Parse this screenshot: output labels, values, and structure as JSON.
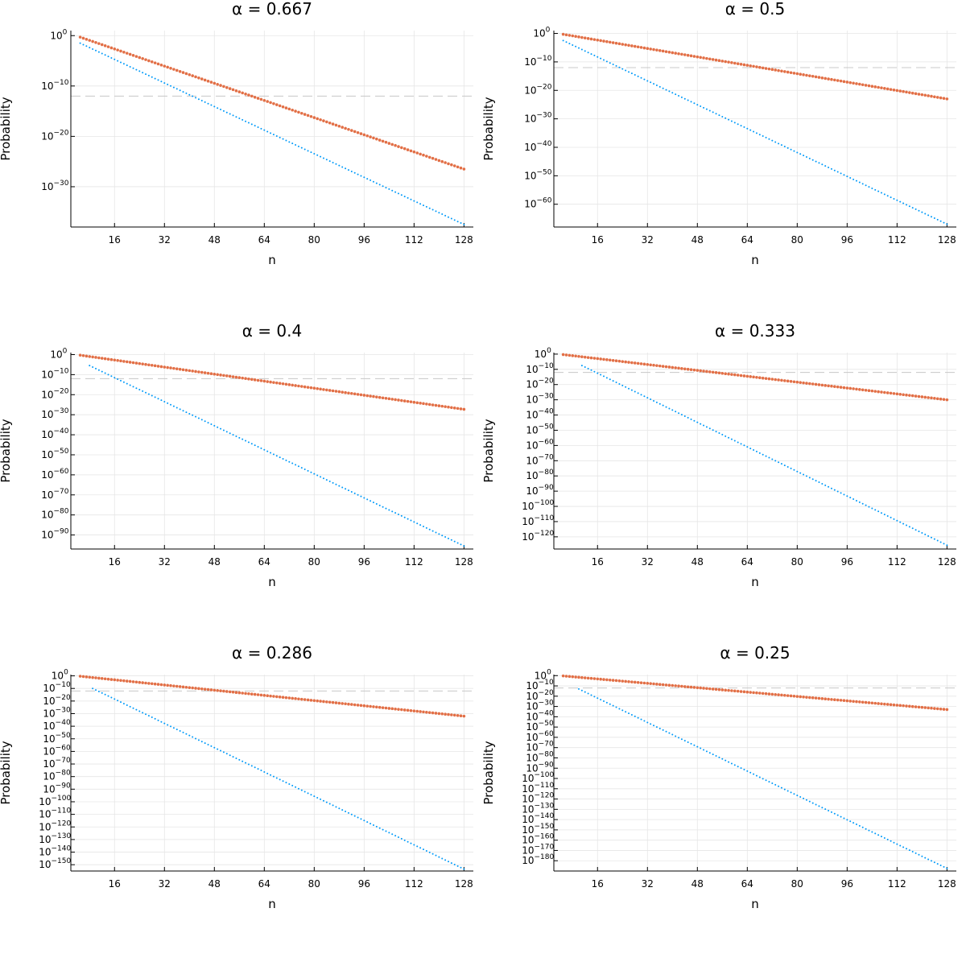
{
  "chart_data": [
    {
      "type": "scatter",
      "title": "α = 0.667",
      "xlabel": "n",
      "ylabel": "Probability",
      "xlim": [
        2,
        131
      ],
      "ylim_log10": [
        -38,
        1
      ],
      "xticks": [
        16,
        32,
        48,
        64,
        80,
        96,
        112,
        128
      ],
      "yticks_exp": [
        0,
        -10,
        -20,
        -30
      ],
      "reference_line_log10": -12,
      "grid": true,
      "series": [
        {
          "name": "orange",
          "color": "#e26f46",
          "style": "markers",
          "x_start": 5,
          "x_end": 128,
          "log10_start": -0.3,
          "log10_end": -26.5
        },
        {
          "name": "blue",
          "color": "#009af9",
          "style": "dotted",
          "x_start": 5,
          "x_end": 128,
          "log10_start": -1.5,
          "log10_end": -37.5
        }
      ]
    },
    {
      "type": "scatter",
      "title": "α = 0.5",
      "xlabel": "n",
      "ylabel": "Probability",
      "xlim": [
        2,
        131
      ],
      "ylim_log10": [
        -68,
        1
      ],
      "xticks": [
        16,
        32,
        48,
        64,
        80,
        96,
        112,
        128
      ],
      "yticks_exp": [
        0,
        -10,
        -20,
        -30,
        -40,
        -50,
        -60
      ],
      "reference_line_log10": -12,
      "grid": true,
      "series": [
        {
          "name": "orange",
          "color": "#e26f46",
          "style": "markers",
          "x_start": 5,
          "x_end": 128,
          "log10_start": -0.3,
          "log10_end": -23
        },
        {
          "name": "blue",
          "color": "#009af9",
          "style": "dotted",
          "x_start": 5,
          "x_end": 128,
          "log10_start": -2.5,
          "log10_end": -67
        }
      ]
    },
    {
      "type": "scatter",
      "title": "α = 0.4",
      "xlabel": "n",
      "ylabel": "Probability",
      "xlim": [
        2,
        131
      ],
      "ylim_log10": [
        -97,
        1
      ],
      "xticks": [
        16,
        32,
        48,
        64,
        80,
        96,
        112,
        128
      ],
      "yticks_exp": [
        0,
        -10,
        -20,
        -30,
        -40,
        -50,
        -60,
        -70,
        -80,
        -90
      ],
      "reference_line_log10": -12,
      "grid": true,
      "series": [
        {
          "name": "orange",
          "color": "#e26f46",
          "style": "markers",
          "x_start": 5,
          "x_end": 128,
          "log10_start": -0.3,
          "log10_end": -27.3
        },
        {
          "name": "blue",
          "color": "#009af9",
          "style": "dotted",
          "x_start": 8,
          "x_end": 128,
          "log10_start": -5.5,
          "log10_end": -95.5
        }
      ]
    },
    {
      "type": "scatter",
      "title": "α = 0.333",
      "xlabel": "n",
      "ylabel": "Probability",
      "xlim": [
        2,
        131
      ],
      "ylim_log10": [
        -128,
        1
      ],
      "xticks": [
        16,
        32,
        48,
        64,
        80,
        96,
        112,
        128
      ],
      "yticks_exp": [
        0,
        -10,
        -20,
        -30,
        -40,
        -50,
        -60,
        -70,
        -80,
        -90,
        -100,
        -110,
        -120
      ],
      "reference_line_log10": -12,
      "grid": true,
      "series": [
        {
          "name": "orange",
          "color": "#e26f46",
          "style": "markers",
          "x_start": 5,
          "x_end": 128,
          "log10_start": -0.3,
          "log10_end": -30
        },
        {
          "name": "blue",
          "color": "#009af9",
          "style": "dotted",
          "x_start": 11,
          "x_end": 128,
          "log10_start": -7.5,
          "log10_end": -125.5
        }
      ]
    },
    {
      "type": "scatter",
      "title": "α = 0.286",
      "xlabel": "n",
      "ylabel": "Probability",
      "xlim": [
        2,
        131
      ],
      "ylim_log10": [
        -155,
        1
      ],
      "xticks": [
        16,
        32,
        48,
        64,
        80,
        96,
        112,
        128
      ],
      "yticks_exp": [
        0,
        -10,
        -20,
        -30,
        -40,
        -50,
        -60,
        -70,
        -80,
        -90,
        -100,
        -110,
        -120,
        -130,
        -140,
        -150
      ],
      "reference_line_log10": -12,
      "grid": true,
      "series": [
        {
          "name": "orange",
          "color": "#e26f46",
          "style": "markers",
          "x_start": 5,
          "x_end": 128,
          "log10_start": -0.3,
          "log10_end": -32
        },
        {
          "name": "blue",
          "color": "#009af9",
          "style": "dotted",
          "x_start": 9,
          "x_end": 128,
          "log10_start": -10,
          "log10_end": -153.5
        }
      ]
    },
    {
      "type": "scatter",
      "title": "α = 0.25",
      "xlabel": "n",
      "ylabel": "Probability",
      "xlim": [
        2,
        131
      ],
      "ylim_log10": [
        -190,
        1
      ],
      "xticks": [
        16,
        32,
        48,
        64,
        80,
        96,
        112,
        128
      ],
      "yticks_exp": [
        0,
        -10,
        -20,
        -30,
        -40,
        -50,
        -60,
        -70,
        -80,
        -90,
        -100,
        -110,
        -120,
        -130,
        -140,
        -150,
        -160,
        -170,
        -180
      ],
      "reference_line_log10": -12,
      "grid": true,
      "series": [
        {
          "name": "orange",
          "color": "#e26f46",
          "style": "markers",
          "x_start": 5,
          "x_end": 128,
          "log10_start": -0.3,
          "log10_end": -33
        },
        {
          "name": "blue",
          "color": "#009af9",
          "style": "dotted",
          "x_start": 10,
          "x_end": 128,
          "log10_start": -13,
          "log10_end": -187.5
        }
      ]
    }
  ]
}
